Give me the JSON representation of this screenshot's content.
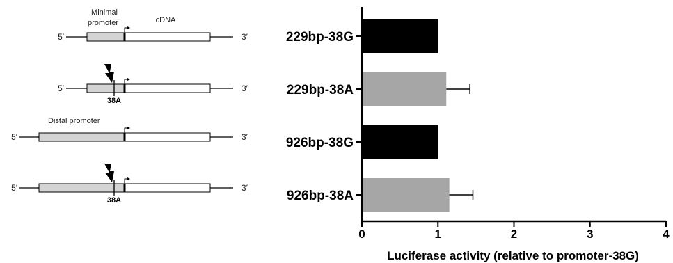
{
  "constructs": [
    {
      "region_label": "Minimal",
      "region_label_2": "promoter",
      "cdna_label": "cDNA",
      "five_prime": "5′",
      "three_prime": "3′",
      "mutation_label": "",
      "mutated": false,
      "type": "minimal"
    },
    {
      "region_label": "",
      "region_label_2": "",
      "cdna_label": "",
      "five_prime": "5′",
      "three_prime": "3′",
      "mutation_label": "38A",
      "mutated": true,
      "type": "minimal"
    },
    {
      "region_label": "Distal promoter",
      "region_label_2": "",
      "cdna_label": "",
      "five_prime": "5′",
      "three_prime": "3′",
      "mutation_label": "",
      "mutated": false,
      "type": "distal"
    },
    {
      "region_label": "",
      "region_label_2": "",
      "cdna_label": "",
      "five_prime": "5′",
      "three_prime": "3′",
      "mutation_label": "38A",
      "mutated": true,
      "type": "distal"
    }
  ],
  "colors": {
    "black_bar": "#000000",
    "grey_bar": "#a6a6a6",
    "promoter_fill": "#d4d4d4",
    "cdna_fill": "#ffffff"
  },
  "chart_data": {
    "type": "bar",
    "orientation": "horizontal",
    "categories": [
      "229bp-38G",
      "229bp-38A",
      "926bp-38G",
      "926bp-38A"
    ],
    "values": [
      1.0,
      1.11,
      1.0,
      1.15
    ],
    "errors": [
      0,
      0.31,
      0,
      0.31
    ],
    "bar_colors": [
      "#000000",
      "#a6a6a6",
      "#000000",
      "#a6a6a6"
    ],
    "xlabel": "Luciferase activity (relative to promoter-38G)",
    "ylabel": "",
    "title": "",
    "xlim": [
      0,
      4
    ],
    "xticks": [
      0,
      1,
      2,
      3,
      4
    ],
    "grid": false,
    "legend": "none"
  }
}
